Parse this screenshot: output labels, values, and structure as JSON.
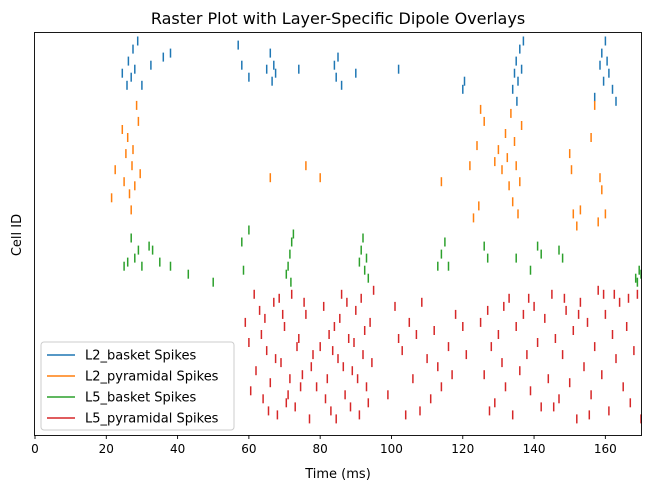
{
  "chart_data": {
    "type": "scatter",
    "title": "Raster Plot with Layer-Specific Dipole Overlays",
    "xlabel": "Time (ms)",
    "ylabel": "Cell ID",
    "xlim": [
      0,
      170
    ],
    "x_ticks": [
      0,
      20,
      40,
      60,
      80,
      100,
      120,
      140,
      160
    ],
    "y_ticks": [],
    "grid": false,
    "legend_position": "lower-left",
    "marker": "vertical-tick",
    "series": [
      {
        "name": "L2_basket Spikes",
        "color": "#1f77b4",
        "band": [
          0.85,
          1.0
        ],
        "points": [
          [
            24.5,
            0.9
          ],
          [
            25.8,
            0.87
          ],
          [
            26.2,
            0.93
          ],
          [
            27.0,
            0.89
          ],
          [
            27.5,
            0.96
          ],
          [
            28.0,
            0.91
          ],
          [
            28.8,
            0.98
          ],
          [
            30.0,
            0.87
          ],
          [
            32.5,
            0.92
          ],
          [
            36.0,
            0.94
          ],
          [
            38.0,
            0.95
          ],
          [
            57.0,
            0.97
          ],
          [
            58.0,
            0.92
          ],
          [
            60.0,
            0.89
          ],
          [
            65.0,
            0.91
          ],
          [
            66.0,
            0.95
          ],
          [
            66.5,
            0.88
          ],
          [
            67.0,
            0.92
          ],
          [
            67.5,
            0.9
          ],
          [
            74.0,
            0.91
          ],
          [
            84.0,
            0.92
          ],
          [
            84.5,
            0.89
          ],
          [
            85.0,
            0.94
          ],
          [
            86.0,
            0.87
          ],
          [
            90.0,
            0.9
          ],
          [
            102.0,
            0.91
          ],
          [
            120.0,
            0.86
          ],
          [
            120.5,
            0.88
          ],
          [
            134.0,
            0.86
          ],
          [
            134.5,
            0.9
          ],
          [
            135.0,
            0.93
          ],
          [
            135.5,
            0.88
          ],
          [
            136.0,
            0.96
          ],
          [
            136.5,
            0.91
          ],
          [
            137.0,
            0.98
          ],
          [
            135.2,
            0.83
          ],
          [
            157.0,
            0.84
          ],
          [
            158.5,
            0.92
          ],
          [
            159.0,
            0.95
          ],
          [
            159.5,
            0.88
          ],
          [
            160.0,
            0.98
          ],
          [
            160.5,
            0.93
          ],
          [
            161.0,
            0.9
          ],
          [
            162.0,
            0.86
          ],
          [
            163.0,
            0.83
          ]
        ]
      },
      {
        "name": "L2_pyramidal Spikes",
        "color": "#ff7f0e",
        "band": [
          0.57,
          0.82
        ],
        "points": [
          [
            21.5,
            0.59
          ],
          [
            22.5,
            0.66
          ],
          [
            24.5,
            0.76
          ],
          [
            25.0,
            0.63
          ],
          [
            25.5,
            0.7
          ],
          [
            26.0,
            0.74
          ],
          [
            26.5,
            0.6
          ],
          [
            27.0,
            0.56
          ],
          [
            27.5,
            0.71
          ],
          [
            28.0,
            0.62
          ],
          [
            28.5,
            0.82
          ],
          [
            29.0,
            0.78
          ],
          [
            29.5,
            0.65
          ],
          [
            27.2,
            0.67
          ],
          [
            66.0,
            0.64
          ],
          [
            76.0,
            0.67
          ],
          [
            80.0,
            0.64
          ],
          [
            114.0,
            0.63
          ],
          [
            122.0,
            0.67
          ],
          [
            123.0,
            0.54
          ],
          [
            124.0,
            0.72
          ],
          [
            124.5,
            0.57
          ],
          [
            125.0,
            0.81
          ],
          [
            126.0,
            0.78
          ],
          [
            130.0,
            0.71
          ],
          [
            131.0,
            0.66
          ],
          [
            132.0,
            0.75
          ],
          [
            132.5,
            0.69
          ],
          [
            133.0,
            0.62
          ],
          [
            133.5,
            0.8
          ],
          [
            134.0,
            0.58
          ],
          [
            134.5,
            0.73
          ],
          [
            135.0,
            0.67
          ],
          [
            135.5,
            0.55
          ],
          [
            136.0,
            0.63
          ],
          [
            136.5,
            0.77
          ],
          [
            129.0,
            0.68
          ],
          [
            150.0,
            0.7
          ],
          [
            150.5,
            0.66
          ],
          [
            151.0,
            0.55
          ],
          [
            152.0,
            0.52
          ],
          [
            153.0,
            0.56
          ],
          [
            156.0,
            0.74
          ],
          [
            157.0,
            0.82
          ],
          [
            158.0,
            0.53
          ],
          [
            158.5,
            0.64
          ],
          [
            159.0,
            0.61
          ],
          [
            160.0,
            0.55
          ]
        ]
      },
      {
        "name": "L5_basket Spikes",
        "color": "#2ca02c",
        "band": [
          0.37,
          0.5
        ],
        "points": [
          [
            25.0,
            0.42
          ],
          [
            26.0,
            0.43
          ],
          [
            27.0,
            0.49
          ],
          [
            28.0,
            0.44
          ],
          [
            29.0,
            0.46
          ],
          [
            30.0,
            0.42
          ],
          [
            32.0,
            0.47
          ],
          [
            33.0,
            0.46
          ],
          [
            35.0,
            0.43
          ],
          [
            38.0,
            0.42
          ],
          [
            43.0,
            0.4
          ],
          [
            50.0,
            0.38
          ],
          [
            58.0,
            0.48
          ],
          [
            58.5,
            0.41
          ],
          [
            60.0,
            0.51
          ],
          [
            70.5,
            0.4
          ],
          [
            71.0,
            0.42
          ],
          [
            71.5,
            0.45
          ],
          [
            72.0,
            0.48
          ],
          [
            72.5,
            0.5
          ],
          [
            71.8,
            0.38
          ],
          [
            91.0,
            0.43
          ],
          [
            91.5,
            0.46
          ],
          [
            92.0,
            0.49
          ],
          [
            92.5,
            0.41
          ],
          [
            93.0,
            0.44
          ],
          [
            93.5,
            0.39
          ],
          [
            113.0,
            0.42
          ],
          [
            114.0,
            0.45
          ],
          [
            115.0,
            0.48
          ],
          [
            116.0,
            0.42
          ],
          [
            126.0,
            0.47
          ],
          [
            127.0,
            0.44
          ],
          [
            135.0,
            0.44
          ],
          [
            139.0,
            0.41
          ],
          [
            141.0,
            0.47
          ],
          [
            142.0,
            0.45
          ],
          [
            147.0,
            0.46
          ],
          [
            148.0,
            0.44
          ],
          [
            169.0,
            0.38
          ],
          [
            169.5,
            0.41
          ],
          [
            170.0,
            0.4
          ],
          [
            168.5,
            0.39
          ]
        ]
      },
      {
        "name": "L5_pyramidal Spikes",
        "color": "#d62728",
        "band": [
          0.03,
          0.38
        ],
        "points": [
          [
            59.0,
            0.28
          ],
          [
            60.0,
            0.23
          ],
          [
            62.0,
            0.16
          ],
          [
            63.0,
            0.31
          ],
          [
            64.0,
            0.09
          ],
          [
            65.0,
            0.21
          ],
          [
            66.0,
            0.13
          ],
          [
            67.0,
            0.33
          ],
          [
            68.0,
            0.05
          ],
          [
            69.0,
            0.18
          ],
          [
            70.0,
            0.27
          ],
          [
            71.0,
            0.1
          ],
          [
            72.0,
            0.35
          ],
          [
            73.0,
            0.07
          ],
          [
            74.0,
            0.24
          ],
          [
            75.0,
            0.15
          ],
          [
            76.0,
            0.3
          ],
          [
            77.0,
            0.04
          ],
          [
            78.0,
            0.2
          ],
          [
            79.0,
            0.12
          ],
          [
            60.5,
            0.11
          ],
          [
            61.5,
            0.35
          ],
          [
            63.5,
            0.25
          ],
          [
            65.5,
            0.06
          ],
          [
            67.5,
            0.19
          ],
          [
            69.5,
            0.3
          ],
          [
            71.5,
            0.14
          ],
          [
            73.5,
            0.22
          ],
          [
            75.5,
            0.33
          ],
          [
            77.5,
            0.17
          ],
          [
            64.5,
            0.29
          ],
          [
            68.5,
            0.34
          ],
          [
            70.5,
            0.08
          ],
          [
            74.5,
            0.12
          ],
          [
            80.0,
            0.22
          ],
          [
            81.0,
            0.32
          ],
          [
            82.0,
            0.14
          ],
          [
            83.0,
            0.06
          ],
          [
            84.0,
            0.27
          ],
          [
            85.0,
            0.19
          ],
          [
            86.0,
            0.35
          ],
          [
            87.0,
            0.1
          ],
          [
            88.0,
            0.24
          ],
          [
            89.0,
            0.16
          ],
          [
            90.0,
            0.31
          ],
          [
            91.0,
            0.05
          ],
          [
            92.0,
            0.2
          ],
          [
            93.0,
            0.12
          ],
          [
            94.0,
            0.28
          ],
          [
            95.0,
            0.36
          ],
          [
            81.5,
            0.09
          ],
          [
            82.5,
            0.25
          ],
          [
            84.5,
            0.04
          ],
          [
            85.5,
            0.29
          ],
          [
            86.5,
            0.17
          ],
          [
            87.5,
            0.33
          ],
          [
            88.5,
            0.07
          ],
          [
            89.5,
            0.23
          ],
          [
            90.5,
            0.14
          ],
          [
            91.5,
            0.34
          ],
          [
            92.5,
            0.26
          ],
          [
            93.5,
            0.08
          ],
          [
            94.5,
            0.18
          ],
          [
            83.5,
            0.21
          ],
          [
            99.0,
            0.1
          ],
          [
            101.0,
            0.32
          ],
          [
            103.0,
            0.21
          ],
          [
            105.0,
            0.28
          ],
          [
            106.0,
            0.14
          ],
          [
            107.0,
            0.25
          ],
          [
            108.0,
            0.06
          ],
          [
            110.0,
            0.19
          ],
          [
            111.0,
            0.09
          ],
          [
            112.0,
            0.26
          ],
          [
            113.0,
            0.17
          ],
          [
            114.0,
            0.12
          ],
          [
            116.0,
            0.22
          ],
          [
            118.0,
            0.3
          ],
          [
            120.0,
            0.27
          ],
          [
            121.0,
            0.2
          ],
          [
            108.5,
            0.33
          ],
          [
            104.0,
            0.05
          ],
          [
            117.0,
            0.15
          ],
          [
            102.0,
            0.24
          ],
          [
            125.0,
            0.28
          ],
          [
            126.0,
            0.15
          ],
          [
            127.0,
            0.31
          ],
          [
            128.0,
            0.22
          ],
          [
            129.0,
            0.08
          ],
          [
            130.0,
            0.25
          ],
          [
            131.0,
            0.18
          ],
          [
            132.0,
            0.12
          ],
          [
            133.0,
            0.34
          ],
          [
            134.0,
            0.05
          ],
          [
            135.0,
            0.27
          ],
          [
            136.0,
            0.16
          ],
          [
            137.0,
            0.3
          ],
          [
            138.0,
            0.2
          ],
          [
            139.0,
            0.11
          ],
          [
            140.0,
            0.32
          ],
          [
            141.0,
            0.23
          ],
          [
            142.0,
            0.07
          ],
          [
            143.0,
            0.29
          ],
          [
            144.0,
            0.14
          ],
          [
            145.0,
            0.35
          ],
          [
            146.0,
            0.24
          ],
          [
            147.0,
            0.09
          ],
          [
            148.0,
            0.2
          ],
          [
            149.0,
            0.31
          ],
          [
            150.0,
            0.13
          ],
          [
            151.0,
            0.26
          ],
          [
            152.0,
            0.04
          ],
          [
            153.0,
            0.33
          ],
          [
            154.0,
            0.17
          ],
          [
            155.0,
            0.28
          ],
          [
            156.0,
            0.1
          ],
          [
            157.0,
            0.22
          ],
          [
            158.0,
            0.36
          ],
          [
            159.0,
            0.15
          ],
          [
            160.0,
            0.3
          ],
          [
            161.0,
            0.06
          ],
          [
            162.0,
            0.25
          ],
          [
            163.0,
            0.19
          ],
          [
            164.0,
            0.33
          ],
          [
            165.0,
            0.12
          ],
          [
            166.0,
            0.27
          ],
          [
            167.0,
            0.08
          ],
          [
            168.0,
            0.21
          ],
          [
            169.0,
            0.35
          ],
          [
            170.0,
            0.04
          ],
          [
            131.5,
            0.32
          ],
          [
            138.5,
            0.34
          ],
          [
            145.5,
            0.07
          ],
          [
            152.5,
            0.3
          ],
          [
            159.5,
            0.35
          ],
          [
            166.5,
            0.34
          ],
          [
            127.5,
            0.06
          ],
          [
            155.5,
            0.05
          ],
          [
            162.5,
            0.35
          ],
          [
            148.5,
            0.34
          ]
        ]
      }
    ]
  }
}
